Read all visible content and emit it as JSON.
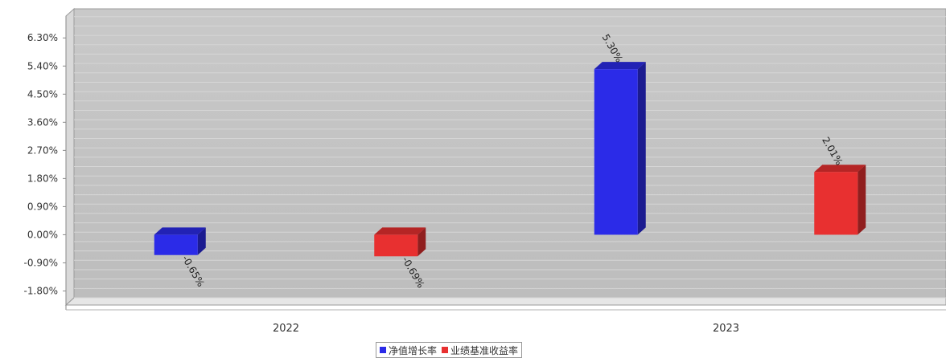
{
  "chart_data": {
    "type": "bar",
    "categories": [
      "2022",
      "2023"
    ],
    "series": [
      {
        "name": "净值增长率",
        "color": "#2b2be8",
        "values": [
          -0.65,
          5.3
        ],
        "labels": [
          "-0.65%",
          "5.30%"
        ]
      },
      {
        "name": "业绩基准收益率",
        "color": "#e83030",
        "values": [
          -0.69,
          2.01
        ],
        "labels": [
          "-0.69%",
          "2.01%"
        ]
      }
    ],
    "ylim": [
      -2.25,
      7.0
    ],
    "yticks": [
      -1.8,
      -0.9,
      0.0,
      0.9,
      1.8,
      2.7,
      3.6,
      4.5,
      5.4,
      6.3
    ],
    "ytick_labels": [
      "-1.80%",
      "-0.90%",
      "0.00%",
      "0.90%",
      "1.80%",
      "2.70%",
      "3.60%",
      "4.50%",
      "5.40%",
      "6.30%"
    ],
    "grid": true,
    "legend_position": "bottom-center",
    "title": "",
    "xlabel": "",
    "ylabel": ""
  }
}
